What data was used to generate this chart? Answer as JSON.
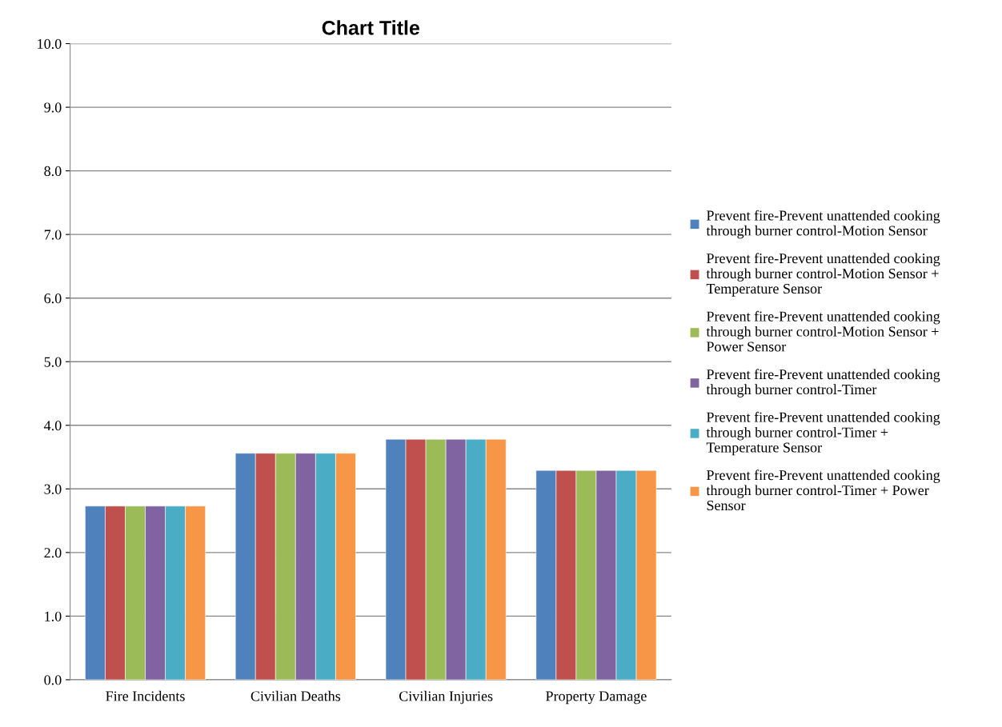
{
  "chart_data": {
    "type": "bar",
    "title": "Chart Title",
    "categories": [
      "Fire Incidents",
      "Civilian Deaths",
      "Civilian Injuries",
      "Property Damage"
    ],
    "series": [
      {
        "name": "Prevent fire-Prevent unattended cooking\nthrough burner control-Motion Sensor",
        "color": "#4f81bd",
        "values": [
          2.73,
          3.56,
          3.78,
          3.29
        ]
      },
      {
        "name": "Prevent fire-Prevent unattended cooking\nthrough burner control-Motion Sensor +\nTemperature Sensor",
        "color": "#c0504d",
        "values": [
          2.73,
          3.56,
          3.78,
          3.29
        ]
      },
      {
        "name": "Prevent fire-Prevent unattended cooking\nthrough burner control-Motion Sensor +\nPower Sensor",
        "color": "#9bbb59",
        "values": [
          2.73,
          3.56,
          3.78,
          3.29
        ]
      },
      {
        "name": "Prevent fire-Prevent unattended cooking\nthrough burner control-Timer",
        "color": "#8064a2",
        "values": [
          2.73,
          3.56,
          3.78,
          3.29
        ]
      },
      {
        "name": "Prevent fire-Prevent unattended cooking\nthrough burner control-Timer +\nTemperature Sensor",
        "color": "#4bacc6",
        "values": [
          2.73,
          3.56,
          3.78,
          3.29
        ]
      },
      {
        "name": "Prevent fire-Prevent unattended cooking\nthrough burner control-Timer + Power\nSensor",
        "color": "#f79646",
        "values": [
          2.73,
          3.56,
          3.78,
          3.29
        ]
      }
    ],
    "ylim": [
      0,
      10
    ],
    "yticks": [
      {
        "value": 0,
        "label": "0.0"
      },
      {
        "value": 1,
        "label": "1.0"
      },
      {
        "value": 2,
        "label": "2.0"
      },
      {
        "value": 3,
        "label": "3.0"
      },
      {
        "value": 4,
        "label": "4.0"
      },
      {
        "value": 5,
        "label": "5.0"
      },
      {
        "value": 6,
        "label": "6.0"
      },
      {
        "value": 7,
        "label": "7.0"
      },
      {
        "value": 8,
        "label": "8.0"
      },
      {
        "value": 9,
        "label": "9.0"
      },
      {
        "value": 10,
        "label": "10.0"
      }
    ],
    "grid": "y",
    "legend": "right"
  }
}
